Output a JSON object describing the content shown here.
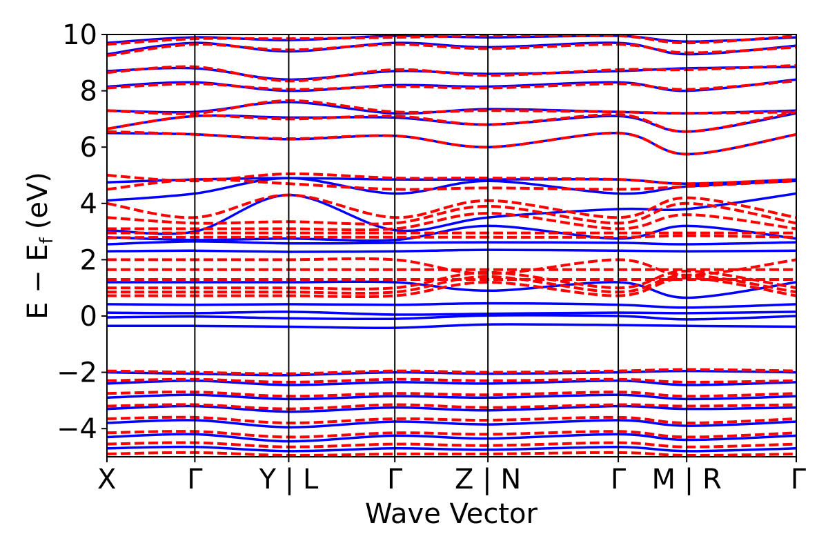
{
  "chart_data": {
    "type": "line",
    "xlabel": "Wave Vector",
    "ylabel": "E − E_f (eV)",
    "ylabel_main": "E − E",
    "ylabel_sub": "f",
    "ylabel_unit": "(eV)",
    "ylim": [
      -5,
      10
    ],
    "yticks": [
      -4,
      -2,
      0,
      2,
      4,
      6,
      8,
      10
    ],
    "ytick_labels": [
      "−4",
      "−2",
      "0",
      "2",
      "4",
      "6",
      "8",
      "10"
    ],
    "xlim": [
      0,
      1
    ],
    "segment_breaks": [
      0,
      0.1275,
      0.2637,
      0.4176,
      0.5527,
      0.7418,
      0.841,
      1.0
    ],
    "xtick_labels": [
      "X",
      "Γ",
      "Y | L",
      "Γ",
      "Z | N",
      "Γ",
      "M | R",
      "Γ"
    ],
    "grid": false,
    "legend": "none",
    "colors": {
      "solid": "#0000ff",
      "dashed": "#ff0000",
      "axes": "#000000"
    },
    "series": [
      {
        "style": "solid",
        "color": "#0000ff",
        "bands": [
          [
            -0.35,
            -0.35,
            -0.38,
            -0.42,
            -0.3,
            -0.32,
            -0.35,
            -0.38
          ],
          [
            -0.05,
            -0.02,
            -0.08,
            -0.1,
            0.02,
            0.0,
            -0.12,
            0.0
          ],
          [
            0.12,
            0.1,
            0.15,
            0.05,
            0.08,
            0.12,
            0.1,
            0.15
          ],
          [
            0.42,
            0.4,
            0.42,
            0.4,
            0.45,
            0.4,
            0.3,
            0.42
          ],
          [
            1.2,
            1.2,
            1.2,
            1.2,
            0.9,
            1.2,
            0.65,
            1.2
          ],
          [
            2.3,
            2.32,
            2.28,
            2.3,
            2.35,
            2.32,
            2.3,
            2.32
          ],
          [
            2.55,
            2.65,
            2.58,
            2.6,
            2.62,
            2.6,
            2.55,
            2.62
          ],
          [
            2.8,
            2.7,
            2.75,
            2.7,
            3.2,
            2.75,
            3.2,
            2.75
          ],
          [
            3.05,
            3.0,
            4.3,
            3.05,
            3.5,
            3.8,
            3.8,
            4.35
          ],
          [
            4.1,
            4.35,
            4.9,
            4.35,
            4.8,
            4.35,
            4.6,
            4.8
          ],
          [
            4.75,
            4.85,
            4.9,
            4.85,
            4.85,
            4.85,
            4.7,
            4.85
          ],
          [
            6.5,
            6.45,
            6.28,
            6.4,
            6.0,
            6.5,
            5.75,
            6.45
          ],
          [
            6.65,
            7.1,
            7.05,
            7.05,
            6.8,
            7.1,
            6.55,
            7.2
          ],
          [
            7.3,
            7.25,
            7.6,
            7.2,
            7.35,
            7.25,
            7.2,
            7.3
          ],
          [
            8.15,
            8.3,
            8.0,
            8.2,
            8.15,
            8.3,
            8.0,
            8.4
          ],
          [
            8.7,
            8.8,
            8.4,
            8.7,
            8.6,
            8.7,
            8.8,
            8.85
          ],
          [
            9.3,
            9.7,
            9.4,
            9.7,
            9.55,
            9.7,
            9.3,
            9.6
          ],
          [
            9.7,
            9.9,
            9.8,
            9.95,
            9.9,
            9.95,
            9.75,
            9.9
          ],
          [
            -2.0,
            -2.05,
            -2.1,
            -2.0,
            -2.05,
            -2.0,
            -1.95,
            -2.0
          ],
          [
            -2.4,
            -2.3,
            -2.45,
            -2.35,
            -2.4,
            -2.3,
            -2.45,
            -2.35
          ],
          [
            -2.9,
            -2.8,
            -2.95,
            -2.85,
            -2.9,
            -2.8,
            -2.95,
            -2.85
          ],
          [
            -3.3,
            -3.2,
            -3.4,
            -3.25,
            -3.35,
            -3.2,
            -3.3,
            -3.25
          ],
          [
            -3.8,
            -3.7,
            -3.95,
            -3.75,
            -3.85,
            -3.7,
            -3.9,
            -3.75
          ],
          [
            -4.3,
            -4.2,
            -4.45,
            -4.25,
            -4.35,
            -4.2,
            -4.4,
            -4.25
          ],
          [
            -4.7,
            -4.65,
            -4.8,
            -4.7,
            -4.75,
            -4.65,
            -4.8,
            -4.7
          ]
        ]
      },
      {
        "style": "dashed",
        "color": "#ff0000",
        "bands": [
          [
            0.72,
            0.72,
            0.72,
            0.72,
            1.2,
            0.72,
            1.35,
            0.72
          ],
          [
            0.85,
            0.85,
            0.85,
            0.85,
            1.4,
            0.85,
            1.45,
            0.85
          ],
          [
            1.0,
            1.0,
            1.0,
            1.0,
            1.55,
            1.0,
            1.6,
            1.0
          ],
          [
            1.3,
            1.3,
            1.3,
            1.3,
            1.3,
            1.3,
            1.3,
            1.3
          ],
          [
            1.65,
            1.65,
            1.65,
            1.65,
            1.65,
            1.65,
            1.65,
            1.65
          ],
          [
            2.0,
            2.0,
            2.0,
            2.0,
            1.5,
            2.0,
            1.45,
            2.0
          ],
          [
            2.78,
            2.8,
            2.8,
            2.8,
            2.8,
            2.8,
            2.85,
            2.8
          ],
          [
            2.95,
            2.95,
            2.95,
            2.95,
            2.95,
            2.95,
            2.95,
            2.95
          ],
          [
            3.1,
            3.1,
            3.1,
            3.1,
            3.65,
            3.1,
            3.6,
            3.1
          ],
          [
            3.5,
            3.3,
            3.35,
            3.3,
            3.9,
            3.3,
            4.0,
            3.3
          ],
          [
            4.0,
            3.5,
            4.3,
            3.5,
            4.1,
            3.5,
            4.2,
            3.5
          ],
          [
            4.5,
            4.85,
            4.7,
            4.5,
            4.55,
            4.5,
            4.6,
            4.8
          ],
          [
            5.0,
            4.8,
            5.05,
            4.9,
            4.9,
            4.85,
            4.7,
            4.85
          ],
          [
            6.55,
            6.45,
            6.3,
            6.4,
            6.0,
            6.5,
            5.75,
            6.45
          ],
          [
            6.65,
            7.1,
            7.0,
            7.1,
            6.8,
            7.15,
            6.55,
            7.25
          ],
          [
            7.3,
            7.2,
            7.65,
            7.25,
            7.3,
            7.25,
            7.2,
            7.25
          ],
          [
            8.1,
            8.25,
            8.05,
            8.15,
            8.1,
            8.25,
            8.05,
            8.35
          ],
          [
            8.65,
            8.85,
            8.35,
            8.75,
            8.55,
            8.75,
            8.75,
            8.9
          ],
          [
            9.25,
            9.65,
            9.45,
            9.65,
            9.5,
            9.65,
            9.35,
            9.55
          ],
          [
            9.65,
            9.85,
            9.85,
            9.9,
            9.95,
            9.95,
            9.7,
            9.95
          ],
          [
            -1.95,
            -2.0,
            -2.05,
            -1.95,
            -2.0,
            -1.95,
            -1.9,
            -1.95
          ],
          [
            -2.3,
            -2.25,
            -2.35,
            -2.25,
            -2.3,
            -2.25,
            -2.35,
            -2.3
          ],
          [
            -2.75,
            -2.7,
            -2.85,
            -2.75,
            -2.8,
            -2.7,
            -2.85,
            -2.75
          ],
          [
            -3.2,
            -3.15,
            -3.3,
            -3.15,
            -3.25,
            -3.15,
            -3.2,
            -3.15
          ],
          [
            -3.65,
            -3.6,
            -3.8,
            -3.65,
            -3.7,
            -3.6,
            -3.8,
            -3.65
          ],
          [
            -4.15,
            -4.1,
            -4.3,
            -4.15,
            -4.2,
            -4.1,
            -4.3,
            -4.15
          ],
          [
            -4.55,
            -4.5,
            -4.65,
            -4.55,
            -4.6,
            -4.5,
            -4.65,
            -4.55
          ],
          [
            -4.9,
            -4.85,
            -4.95,
            -4.9,
            -4.9,
            -4.85,
            -4.95,
            -4.9
          ]
        ]
      }
    ]
  }
}
